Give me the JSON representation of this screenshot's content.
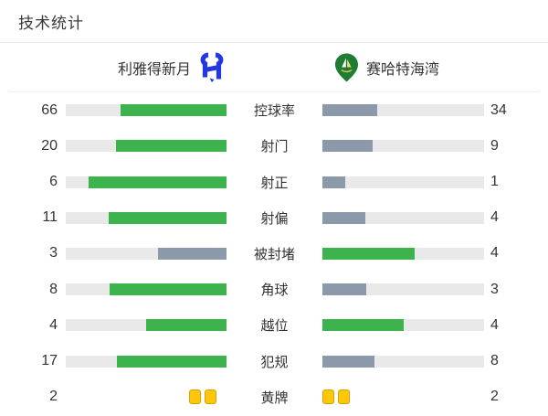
{
  "page": {
    "title": "技术统计"
  },
  "teams": {
    "home": {
      "name": "利雅得新月",
      "crest_color": "#2238e0"
    },
    "away": {
      "name": "赛哈特海湾",
      "crest_color": "#1e7d33"
    }
  },
  "colors": {
    "bar_green": "#3cb34c",
    "bar_gray": "#8b99aa",
    "bar_track": "#e9e9e9",
    "card_yellow": "#ffc60a",
    "card_border": "#d7a100",
    "divider": "#ebebeb"
  },
  "stats": [
    {
      "label": "控球率",
      "home": 66,
      "away": 34,
      "type": "bar"
    },
    {
      "label": "射门",
      "home": 20,
      "away": 9,
      "type": "bar"
    },
    {
      "label": "射正",
      "home": 6,
      "away": 1,
      "type": "bar"
    },
    {
      "label": "射偏",
      "home": 11,
      "away": 4,
      "type": "bar"
    },
    {
      "label": "被封堵",
      "home": 3,
      "away": 4,
      "type": "bar"
    },
    {
      "label": "角球",
      "home": 8,
      "away": 3,
      "type": "bar"
    },
    {
      "label": "越位",
      "home": 4,
      "away": 4,
      "type": "bar"
    },
    {
      "label": "犯规",
      "home": 17,
      "away": 8,
      "type": "bar"
    },
    {
      "label": "黄牌",
      "home": 2,
      "away": 2,
      "type": "cards"
    }
  ]
}
